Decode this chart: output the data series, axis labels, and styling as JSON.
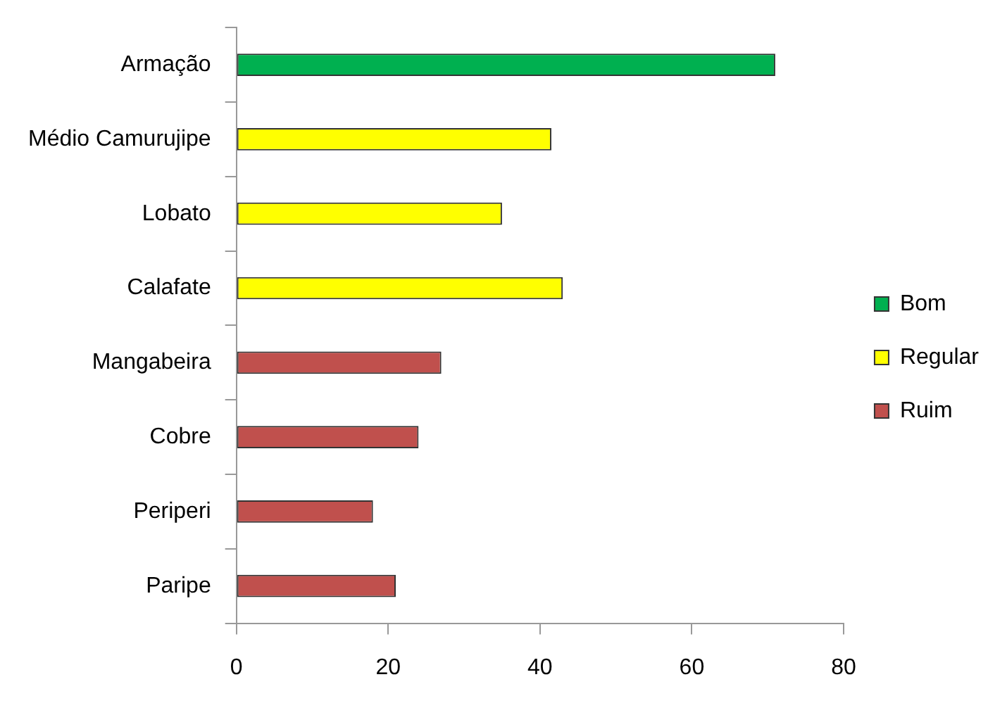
{
  "chart_data": {
    "type": "bar",
    "orientation": "horizontal",
    "stacked": true,
    "categories": [
      "Armação",
      "Médio Camurujipe",
      "Lobato",
      "Calafate",
      "Mangabeira",
      "Cobre",
      "Periperi",
      "Paripe"
    ],
    "series": [
      {
        "name": "Bom",
        "color": "#00b050",
        "values": [
          71,
          null,
          null,
          null,
          null,
          null,
          null,
          null
        ]
      },
      {
        "name": "Regular",
        "color": "#ffff00",
        "values": [
          null,
          41.5,
          35,
          43,
          null,
          null,
          null,
          null
        ]
      },
      {
        "name": "Ruim",
        "color": "#c0504d",
        "values": [
          null,
          null,
          null,
          null,
          27,
          24,
          18,
          21
        ]
      }
    ],
    "xlim": [
      0,
      80
    ],
    "xticks": [
      0,
      20,
      40,
      60,
      80
    ],
    "grid": false,
    "legend": "right"
  }
}
